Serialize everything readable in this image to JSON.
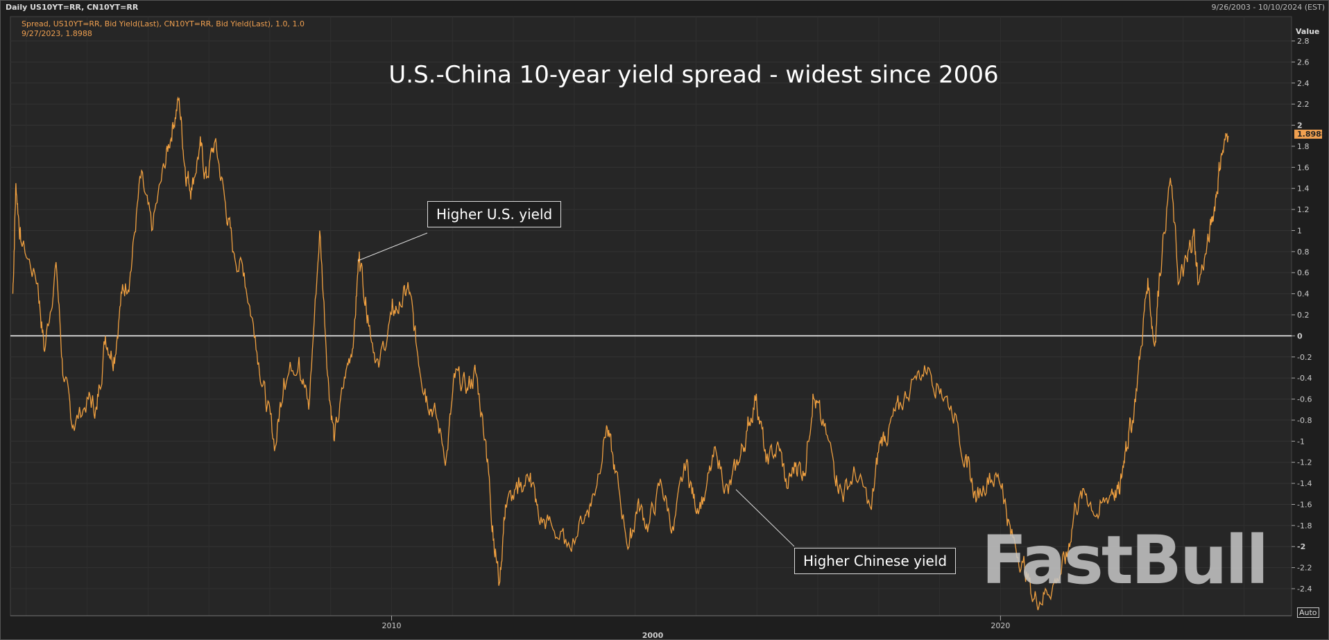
{
  "header": {
    "left": "Daily US10YT=RR, CN10YT=RR",
    "right": "9/26/2003 - 10/10/2024 (EST)"
  },
  "legend": {
    "series": "Spread, US10YT=RR, Bid Yield(Last), CN10YT=RR, Bid Yield(Last),  1.0, 1.0",
    "last_point": "9/27/2023, 1.8988"
  },
  "axis": {
    "value_label": "Value",
    "auto_label": "Auto",
    "last_value": "1.8988",
    "decade_label": "2000"
  },
  "watermark": "FastBull",
  "colors": {
    "series": "#f0a040",
    "zero_line": "#ffffff",
    "background": "#262626"
  },
  "chart_data": {
    "type": "line",
    "title": "U.S.-China 10-year yield spread - widest since 2006",
    "ylabel": "Value",
    "xlabel": "",
    "ylim": [
      -2.4,
      2.8
    ],
    "xlim": [
      2003.74,
      2024.78
    ],
    "yticks": [
      "2.8",
      "2.6",
      "2.4",
      "2.2",
      "2",
      "1.8",
      "1.6",
      "1.4",
      "1.2",
      "1",
      "0.8",
      "0.6",
      "0.4",
      "0.2",
      "0",
      "-0.2",
      "-0.4",
      "-0.6",
      "-0.8",
      "-1",
      "-1.2",
      "-1.4",
      "-1.6",
      "-1.8",
      "-2",
      "-2.2",
      "-2.4"
    ],
    "xticks": [
      {
        "label": "2010",
        "x": 2010
      },
      {
        "label": "2020",
        "x": 2020
      }
    ],
    "grid": true,
    "annotations": [
      {
        "text": "Higher U.S. yield",
        "x": 2009.47,
        "y": 0.8
      },
      {
        "text": "Higher Chinese yield",
        "x": 2015.53,
        "y": -1.45
      }
    ],
    "series": [
      {
        "name": "Spread",
        "x": [
          2003.78,
          2003.83,
          2003.91,
          2004.19,
          2004.3,
          2004.49,
          2004.61,
          2004.77,
          2005.02,
          2005.16,
          2005.3,
          2005.44,
          2005.57,
          2005.71,
          2005.88,
          2006.06,
          2006.27,
          2006.4,
          2006.51,
          2006.61,
          2006.71,
          2006.85,
          2006.96,
          2007.1,
          2007.26,
          2007.4,
          2007.58,
          2007.76,
          2007.93,
          2008.09,
          2008.23,
          2008.48,
          2008.64,
          2008.82,
          2008.96,
          2009.06,
          2009.24,
          2009.38,
          2009.47,
          2009.61,
          2009.79,
          2010.0,
          2010.14,
          2010.28,
          2010.41,
          2010.55,
          2010.69,
          2010.9,
          2011.04,
          2011.24,
          2011.38,
          2011.55,
          2011.66,
          2011.77,
          2011.87,
          2012.07,
          2012.28,
          2012.42,
          2012.63,
          2012.88,
          2013.18,
          2013.32,
          2013.53,
          2013.67,
          2013.9,
          2014.04,
          2014.22,
          2014.43,
          2014.63,
          2014.84,
          2014.98,
          2015.15,
          2015.33,
          2015.53,
          2015.7,
          2015.84,
          2015.99,
          2016.15,
          2016.36,
          2016.5,
          2016.64,
          2016.78,
          2016.92,
          2017.05,
          2017.26,
          2017.4,
          2017.61,
          2017.88,
          2018.02,
          2018.16,
          2018.33,
          2018.58,
          2018.81,
          2019.02,
          2019.27,
          2019.45,
          2019.61,
          2019.82,
          2020.03,
          2020.17,
          2020.37,
          2020.54,
          2020.72,
          2020.93,
          2021.09,
          2021.23,
          2021.41,
          2021.62,
          2021.83,
          2021.96,
          2022.06,
          2022.17,
          2022.31,
          2022.42,
          2022.53,
          2022.61,
          2022.79,
          2022.93,
          2023.07,
          2023.17,
          2023.25,
          2023.42,
          2023.53,
          2023.62,
          2023.74
        ],
        "values": [
          0.4,
          1.45,
          0.9,
          0.5,
          -0.15,
          0.7,
          -0.4,
          -0.85,
          -0.6,
          -0.7,
          0.0,
          -0.2,
          0.4,
          0.6,
          1.5,
          1.0,
          1.6,
          2.0,
          2.25,
          1.6,
          1.4,
          1.8,
          1.5,
          1.85,
          1.3,
          0.8,
          0.6,
          0.0,
          -0.6,
          -1.05,
          -0.4,
          -0.2,
          -0.7,
          1.0,
          -0.4,
          -1.0,
          -0.4,
          0.0,
          0.8,
          0.2,
          -0.3,
          0.2,
          0.3,
          0.45,
          -0.1,
          -0.5,
          -0.7,
          -1.15,
          -0.4,
          -0.5,
          -0.35,
          -1.0,
          -1.8,
          -2.35,
          -1.6,
          -1.5,
          -1.3,
          -1.75,
          -1.8,
          -2.0,
          -1.7,
          -1.5,
          -0.85,
          -1.3,
          -2.0,
          -1.6,
          -1.8,
          -1.4,
          -1.85,
          -1.2,
          -1.6,
          -1.5,
          -1.1,
          -1.5,
          -1.2,
          -0.9,
          -0.55,
          -1.2,
          -1.05,
          -1.45,
          -1.2,
          -1.3,
          -0.55,
          -0.8,
          -1.2,
          -1.5,
          -1.3,
          -1.65,
          -1.0,
          -0.9,
          -0.7,
          -0.4,
          -0.3,
          -0.5,
          -0.75,
          -1.25,
          -1.55,
          -1.3,
          -1.4,
          -1.9,
          -2.15,
          -2.5,
          -2.45,
          -2.3,
          -2.1,
          -1.6,
          -1.5,
          -1.7,
          -1.45,
          -1.5,
          -1.0,
          -0.8,
          -0.1,
          0.55,
          -0.1,
          0.6,
          1.5,
          0.5,
          0.7,
          1.0,
          0.5,
          0.9,
          1.3,
          1.7,
          1.8988
        ]
      }
    ]
  }
}
